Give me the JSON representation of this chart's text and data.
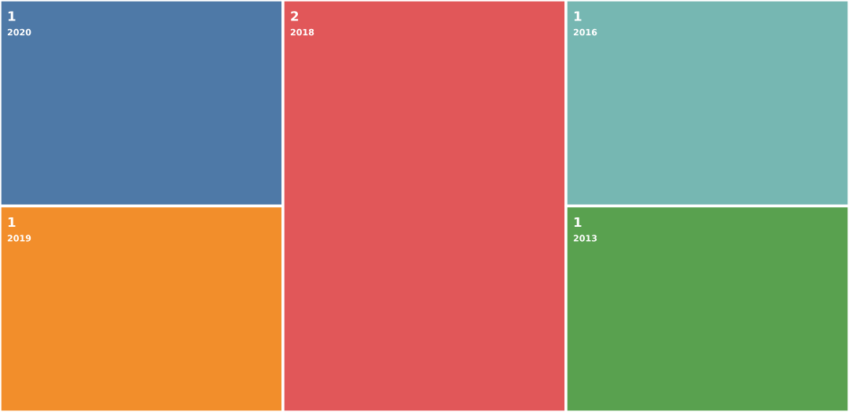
{
  "chart_data": {
    "type": "other",
    "categories": [
      "2020",
      "2019",
      "2018",
      "2016",
      "2013"
    ],
    "values": [
      1,
      1,
      2,
      1,
      1
    ],
    "colors": [
      "#4e79a7",
      "#f28e2b",
      "#e15759",
      "#76b7b2",
      "#59a14f"
    ],
    "data_labels": true
  }
}
